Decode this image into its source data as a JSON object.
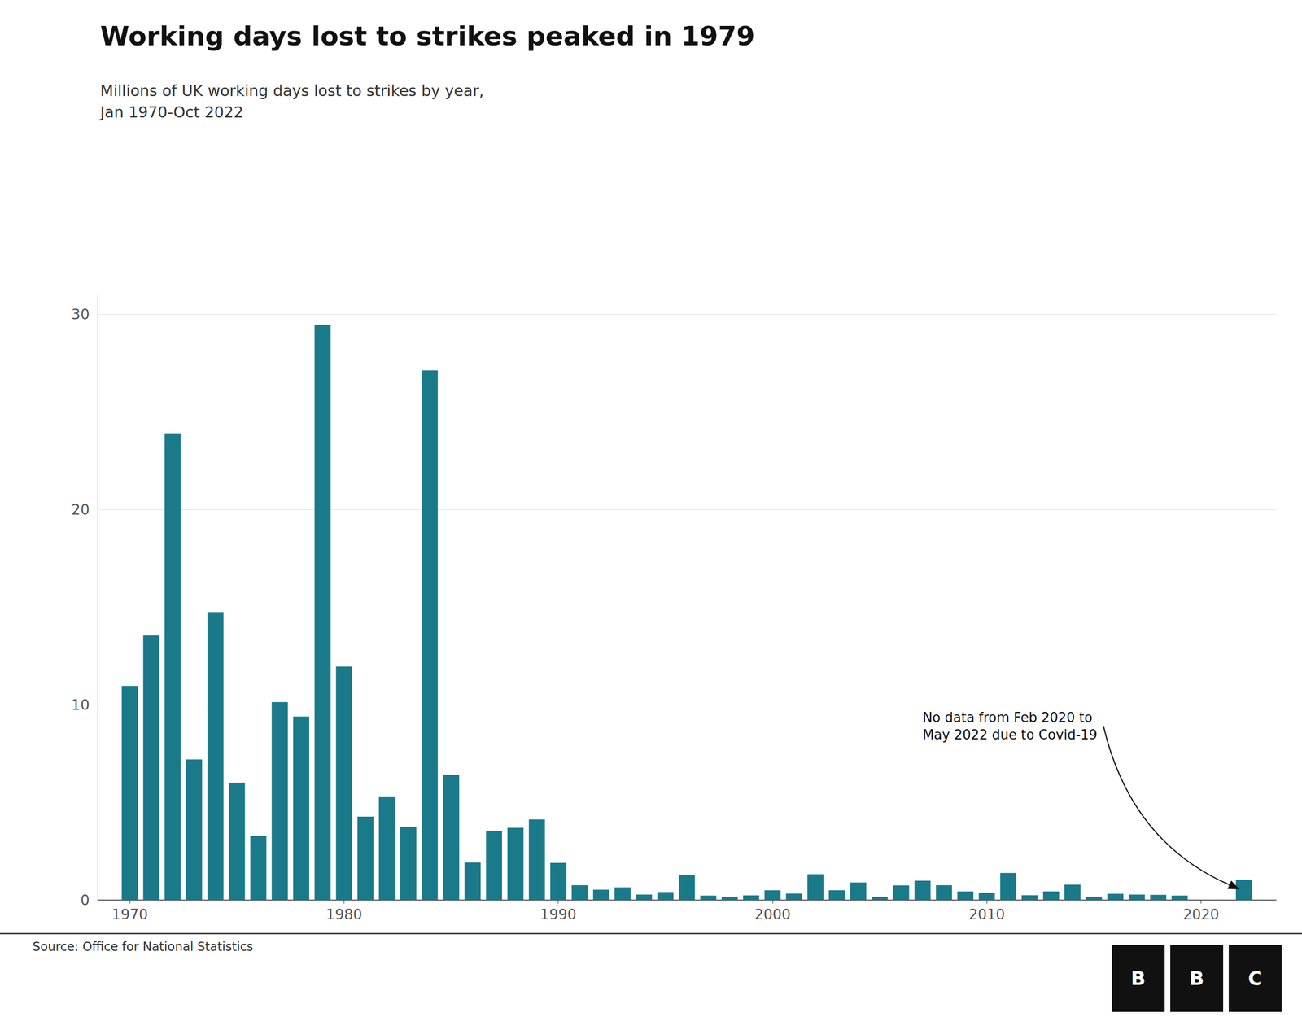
{
  "chart_data": {
    "type": "bar",
    "title": "Working days lost to strikes peaked in 1979",
    "subtitle": "Millions of UK working days lost to strikes by year,\nJan 1970-Oct 2022",
    "source": "Source: Office for National Statistics",
    "logo": "BBC",
    "x": [
      1970,
      1971,
      1972,
      1973,
      1974,
      1975,
      1976,
      1977,
      1978,
      1979,
      1980,
      1981,
      1982,
      1983,
      1984,
      1985,
      1986,
      1987,
      1988,
      1989,
      1990,
      1991,
      1992,
      1993,
      1994,
      1995,
      1996,
      1997,
      1998,
      1999,
      2000,
      2001,
      2002,
      2003,
      2004,
      2005,
      2006,
      2007,
      2008,
      2009,
      2010,
      2011,
      2012,
      2013,
      2014,
      2015,
      2016,
      2017,
      2018,
      2019,
      2022
    ],
    "values": [
      10.97,
      13.55,
      23.91,
      7.2,
      14.75,
      6.01,
      3.28,
      10.14,
      9.4,
      29.47,
      11.96,
      4.27,
      5.31,
      3.75,
      27.13,
      6.4,
      1.92,
      3.55,
      3.7,
      4.13,
      1.9,
      0.76,
      0.53,
      0.65,
      0.28,
      0.41,
      1.3,
      0.23,
      0.17,
      0.24,
      0.5,
      0.33,
      1.32,
      0.5,
      0.9,
      0.16,
      0.75,
      0.99,
      0.76,
      0.44,
      0.37,
      1.39,
      0.25,
      0.44,
      0.79,
      0.17,
      0.32,
      0.28,
      0.27,
      0.23,
      1.05
    ],
    "color": "#1a7a8a",
    "xlim": [
      1968.5,
      2023.5
    ],
    "xticks": [
      1970,
      1980,
      1990,
      2000,
      2010,
      2020
    ],
    "ylim": [
      0,
      31
    ],
    "yticks": [
      0,
      10,
      20,
      30
    ],
    "grid": true,
    "annotations": [
      {
        "text": "No data from Feb 2020 to\nMay 2022 due to Covid-19",
        "x": 2021.8,
        "y": 0.55,
        "text_x": 2007.0,
        "text_y": 9.8
      }
    ]
  }
}
